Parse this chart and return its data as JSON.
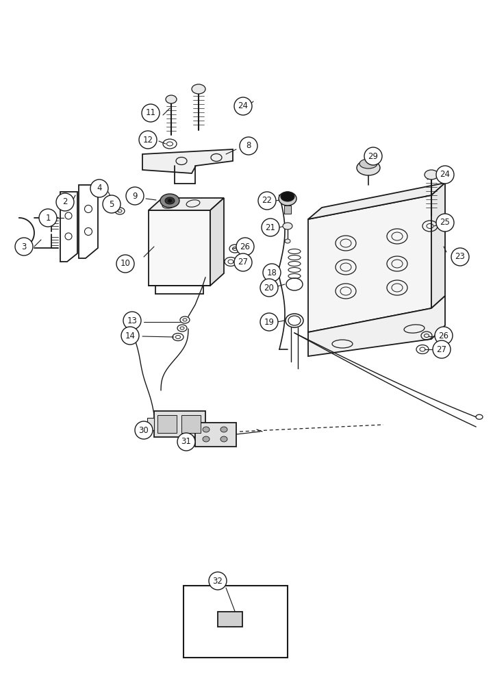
{
  "bg_color": "#ffffff",
  "lc": "#1a1a1a",
  "fig_width": 7.2,
  "fig_height": 10.0,
  "dpi": 100
}
